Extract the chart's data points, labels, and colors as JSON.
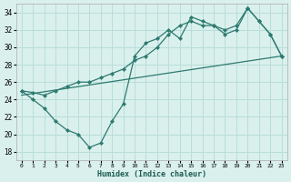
{
  "xlabel": "Humidex (Indice chaleur)",
  "xlim": [
    -0.5,
    23.5
  ],
  "ylim": [
    17,
    35
  ],
  "xticks": [
    0,
    1,
    2,
    3,
    4,
    5,
    6,
    7,
    8,
    9,
    10,
    11,
    12,
    13,
    14,
    15,
    16,
    17,
    18,
    19,
    20,
    21,
    22,
    23
  ],
  "yticks": [
    18,
    20,
    22,
    24,
    26,
    28,
    30,
    32,
    34
  ],
  "bg_color": "#daf0ed",
  "grid_color": "#b8deda",
  "line_color": "#2d7a70",
  "line1_x": [
    0,
    1,
    2,
    3,
    4,
    5,
    6,
    7,
    8,
    9,
    10,
    11,
    12,
    13,
    14,
    15,
    16,
    17,
    18,
    19,
    20,
    21,
    22,
    23
  ],
  "line1_y": [
    25.0,
    24.0,
    23.0,
    21.5,
    20.5,
    20.0,
    18.5,
    19.0,
    21.5,
    23.5,
    29.0,
    30.5,
    31.0,
    32.0,
    31.0,
    33.5,
    33.0,
    32.5,
    31.5,
    32.0,
    34.5,
    33.0,
    31.5,
    29.0
  ],
  "line2_x": [
    0,
    1,
    2,
    3,
    4,
    5,
    6,
    7,
    8,
    9,
    10,
    11,
    12,
    13,
    14,
    15,
    16,
    17,
    18,
    19,
    20,
    21,
    22,
    23
  ],
  "line2_y": [
    25.0,
    24.8,
    24.5,
    25.0,
    25.5,
    26.0,
    26.0,
    26.5,
    27.0,
    27.5,
    28.5,
    29.0,
    30.0,
    31.5,
    32.5,
    33.0,
    32.5,
    32.5,
    32.0,
    32.5,
    34.5,
    33.0,
    31.5,
    29.0
  ],
  "line3_x": [
    0,
    23
  ],
  "line3_y": [
    24.5,
    29.0
  ]
}
